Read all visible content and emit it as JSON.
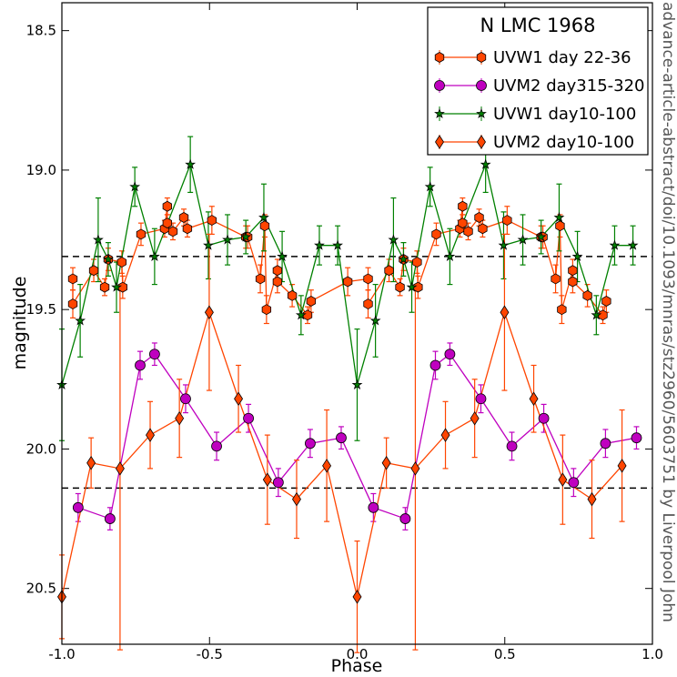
{
  "chart_data": {
    "type": "errorbar",
    "y_label": "magnitude",
    "x_label": "Phase",
    "side_text": "advance-article-abstract/doi/10.1093/mnras/stz2960/5603751 by Liverpool John",
    "legend_title": "N LMC 1968",
    "legend_position": "upper right",
    "xlim": [
      -1.0,
      1.0
    ],
    "ylim": [
      18.4,
      20.7
    ],
    "y_inverted": true,
    "xticks": [
      {
        "value": -1.0,
        "label": "-1.0"
      },
      {
        "value": -0.5,
        "label": "-0.5"
      },
      {
        "value": 0.0,
        "label": "0.0"
      },
      {
        "value": 0.5,
        "label": "0.5"
      },
      {
        "value": 1.0,
        "label": "1.0"
      }
    ],
    "yticks": [
      18.5,
      {
        "value": 19.0,
        "label": "19.0"
      },
      19.5,
      {
        "value": 20.0,
        "label": "20.0"
      },
      20.5
    ],
    "hlines": [
      19.31,
      20.14
    ],
    "series": [
      {
        "name": "UVW1 day 22-36",
        "color": "#ff4500",
        "marker": "hexagon",
        "x": [
          -0.963,
          -0.963,
          -0.892,
          -0.855,
          -0.843,
          -0.797,
          -0.794,
          -0.732,
          -0.652,
          -0.643,
          -0.643,
          -0.624,
          -0.587,
          -0.575,
          -0.492,
          -0.377,
          -0.371,
          -0.328,
          -0.313,
          -0.307,
          -0.27,
          -0.27,
          -0.22,
          -0.168,
          -0.156,
          -0.032,
          0.037,
          0.037,
          0.108,
          0.145,
          0.157,
          0.203,
          0.206,
          0.268,
          0.348,
          0.357,
          0.357,
          0.376,
          0.413,
          0.425,
          0.508,
          0.623,
          0.629,
          0.672,
          0.687,
          0.693,
          0.73,
          0.73,
          0.78,
          0.832,
          0.844
        ],
        "values": [
          19.39,
          19.48,
          19.36,
          19.42,
          19.32,
          19.33,
          19.42,
          19.23,
          19.21,
          19.13,
          19.19,
          19.22,
          19.17,
          19.21,
          19.18,
          19.24,
          19.24,
          19.39,
          19.2,
          19.5,
          19.36,
          19.4,
          19.45,
          19.52,
          19.47,
          19.4,
          19.39,
          19.48,
          19.36,
          19.42,
          19.32,
          19.33,
          19.42,
          19.23,
          19.21,
          19.13,
          19.19,
          19.22,
          19.17,
          19.21,
          19.18,
          19.24,
          19.24,
          19.39,
          19.2,
          19.5,
          19.36,
          19.4,
          19.45,
          19.52,
          19.47
        ],
        "errors": [
          0.04,
          0.05,
          0.04,
          0.03,
          0.04,
          0.04,
          0.04,
          0.04,
          0.03,
          0.03,
          0.03,
          0.03,
          0.03,
          0.03,
          0.05,
          0.04,
          0.04,
          0.05,
          0.04,
          0.05,
          0.04,
          0.04,
          0.04,
          0.03,
          0.04,
          0.05,
          0.04,
          0.05,
          0.04,
          0.03,
          0.04,
          0.04,
          0.04,
          0.04,
          0.03,
          0.03,
          0.03,
          0.03,
          0.03,
          0.03,
          0.05,
          0.04,
          0.04,
          0.05,
          0.04,
          0.05,
          0.04,
          0.04,
          0.04,
          0.03,
          0.04
        ]
      },
      {
        "name": "UVM2 day315-320",
        "color": "#bf00bf",
        "marker": "circle",
        "x": [
          -0.945,
          -0.837,
          -0.735,
          -0.686,
          -0.581,
          -0.476,
          -0.368,
          -0.267,
          -0.159,
          -0.054,
          0.055,
          0.163,
          0.265,
          0.314,
          0.419,
          0.524,
          0.632,
          0.733,
          0.841,
          0.946
        ],
        "values": [
          20.21,
          20.25,
          19.7,
          19.66,
          19.82,
          19.99,
          19.89,
          20.12,
          19.98,
          19.96,
          20.21,
          20.25,
          19.7,
          19.66,
          19.82,
          19.99,
          19.89,
          20.12,
          19.98,
          19.96
        ],
        "errors": [
          0.05,
          0.04,
          0.05,
          0.04,
          0.05,
          0.05,
          0.05,
          0.05,
          0.05,
          0.04,
          0.05,
          0.04,
          0.05,
          0.04,
          0.05,
          0.05,
          0.05,
          0.05,
          0.05,
          0.04
        ]
      },
      {
        "name": "UVW1 day10-100",
        "color": "#008000",
        "marker": "star",
        "x": [
          -1.0,
          -0.938,
          -0.877,
          -0.843,
          -0.815,
          -0.753,
          -0.686,
          -0.565,
          -0.504,
          -0.439,
          -0.377,
          -0.316,
          -0.254,
          -0.19,
          -0.128,
          -0.066,
          0.0,
          0.062,
          0.123,
          0.157,
          0.185,
          0.247,
          0.314,
          0.435,
          0.496,
          0.561,
          0.623,
          0.684,
          0.746,
          0.81,
          0.872,
          0.934
        ],
        "values": [
          19.77,
          19.54,
          19.25,
          19.32,
          19.42,
          19.06,
          19.31,
          18.98,
          19.27,
          19.25,
          19.24,
          19.17,
          19.31,
          19.52,
          19.27,
          19.27,
          19.77,
          19.54,
          19.25,
          19.32,
          19.42,
          19.06,
          19.31,
          18.98,
          19.27,
          19.25,
          19.24,
          19.17,
          19.31,
          19.52,
          19.27,
          19.27
        ],
        "errors": [
          0.2,
          0.13,
          0.15,
          0.06,
          0.09,
          0.07,
          0.1,
          0.1,
          0.12,
          0.09,
          0.06,
          0.12,
          0.09,
          0.07,
          0.07,
          0.07,
          0.2,
          0.13,
          0.15,
          0.06,
          0.09,
          0.07,
          0.1,
          0.1,
          0.12,
          0.09,
          0.06,
          0.12,
          0.09,
          0.07,
          0.07,
          0.07
        ]
      },
      {
        "name": "UVM2 day10-100",
        "color": "#ff4500",
        "marker": "diamond",
        "x": [
          -1.0,
          -0.901,
          -0.803,
          -0.701,
          -0.602,
          -0.501,
          -0.402,
          -0.304,
          -0.205,
          -0.103,
          0.0,
          0.099,
          0.197,
          0.299,
          0.398,
          0.499,
          0.598,
          0.696,
          0.795,
          0.897
        ],
        "values": [
          20.53,
          20.05,
          20.07,
          19.95,
          19.89,
          19.51,
          19.82,
          20.11,
          20.18,
          20.06,
          20.53,
          20.05,
          20.07,
          19.95,
          19.89,
          19.51,
          19.82,
          20.11,
          20.18,
          20.06
        ],
        "errors": [
          0.15,
          0.09,
          0.65,
          0.12,
          0.14,
          0.28,
          0.12,
          0.16,
          0.14,
          0.2,
          0.2,
          0.09,
          0.65,
          0.12,
          0.14,
          0.28,
          0.12,
          0.16,
          0.14,
          0.2
        ]
      }
    ]
  }
}
